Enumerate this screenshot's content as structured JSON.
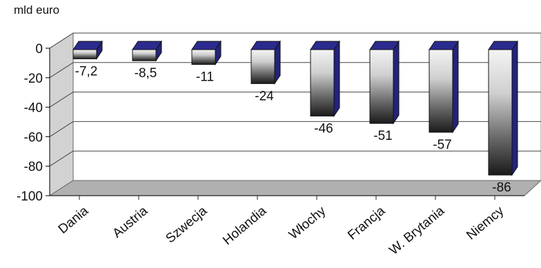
{
  "chart_data": {
    "type": "bar",
    "unit_label": "mld euro",
    "categories": [
      "Dania",
      "Austria",
      "Szwecja",
      "Holandia",
      "Włochy",
      "Francja",
      "W. Brytania",
      "Niemcy"
    ],
    "values": [
      -7.2,
      -8.5,
      -11,
      -24,
      -46,
      -51,
      -57,
      -86
    ],
    "value_labels": [
      "-7,2",
      "-8,5",
      "-11",
      "-24",
      "-46",
      "-51",
      "-57",
      "-86"
    ],
    "ylim": [
      -100,
      0
    ],
    "yticks": [
      0,
      -20,
      -40,
      -60,
      -80,
      -100
    ],
    "ytick_labels": [
      "0",
      "-20",
      "-40",
      "-60",
      "-80",
      "-100"
    ],
    "grid": true,
    "legend": "none",
    "colors": {
      "bar_top": "#2b2b8f",
      "bar_side": "#23237a",
      "bar_light": "#f4f4f4",
      "bar_dark": "#1a1a1a",
      "wall": "#d2d2d2",
      "floor": "#b0b0b0"
    }
  }
}
